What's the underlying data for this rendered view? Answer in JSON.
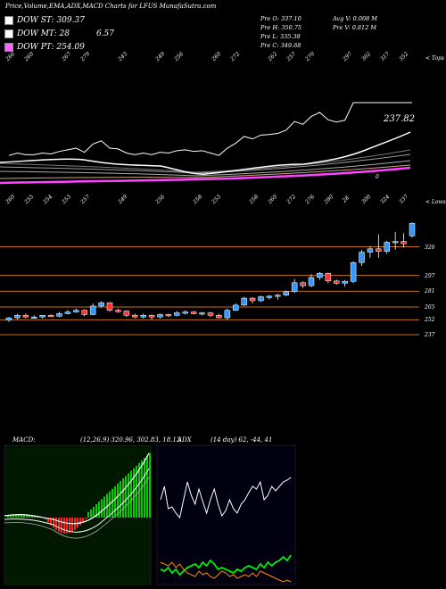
{
  "title": "Price,Volume,EMA,ADX,MACD Charts for LFUS MunafaSutra.com",
  "legend": [
    {
      "label": "DOW ST: 309.37",
      "color": "#ffffff"
    },
    {
      "label": "DOW MT: 28",
      "extra": "6.57",
      "color": "#ffffff"
    },
    {
      "label": "DOW PT: 254.09",
      "color": "#ff66ff"
    }
  ],
  "price_info": {
    "col1": [
      "Pre   O: 337.10",
      "Pre   H: 350.75",
      "Pre   L: 335.38",
      "Pre   C: 349.68"
    ],
    "col2": [
      "Avg V: 0.008   M",
      "Pre   V: 0.812   M"
    ]
  },
  "top_label": "< Tops",
  "low_label": "< Lows",
  "price_annot": "237.82",
  "zero_label": "0",
  "tops_numbers": [
    "266",
    "260",
    "",
    "267",
    "279",
    "",
    "243",
    "",
    "249",
    "256",
    "",
    "260",
    "272",
    "",
    "262",
    "257",
    "270",
    "",
    "297",
    "302",
    "317",
    "352"
  ],
  "lows_numbers": [
    "260",
    "255",
    "254",
    "253",
    "257",
    "",
    "249",
    "",
    "256",
    "",
    "258",
    "253",
    "",
    "258",
    "260",
    "272",
    "276",
    "280",
    "28",
    "300",
    "324",
    "337"
  ],
  "macd": {
    "label": "MACD:",
    "values": "(12,26,9) 320.96, 302.83, 18.13",
    "adx_label": "ADX",
    "adx_values": "(14 day) 62, -44, 41"
  },
  "colors": {
    "price_up": "#3399ff",
    "price_down": "#ff3333",
    "ema_pink": "#ff44ff",
    "level_line": "#c8701a",
    "macd_green": "#00cc00",
    "macd_red": "#ff2222",
    "adx_green": "#00ee00",
    "adx_orange": "#ff8800"
  },
  "chart_data": {
    "type": "candlestick",
    "price_levels": [
      326,
      297,
      281,
      265,
      252,
      237
    ],
    "candles": [
      {
        "o": 251.6,
        "h": 254.9,
        "l": 250.0,
        "c": 254.1
      },
      {
        "o": 254.1,
        "h": 258.0,
        "l": 252.3,
        "c": 256.6
      },
      {
        "o": 256.6,
        "h": 258.3,
        "l": 253.7,
        "c": 254.9
      },
      {
        "o": 254.9,
        "h": 256.6,
        "l": 253.4,
        "c": 254.9
      },
      {
        "o": 254.9,
        "h": 256.6,
        "l": 253.4,
        "c": 256.6
      },
      {
        "o": 256.6,
        "h": 257.4,
        "l": 254.9,
        "c": 255.7
      },
      {
        "o": 255.7,
        "h": 260.0,
        "l": 254.9,
        "c": 258.3
      },
      {
        "o": 258.3,
        "h": 262.0,
        "l": 257.4,
        "c": 260.0
      },
      {
        "o": 260.0,
        "h": 263.4,
        "l": 259.1,
        "c": 261.7
      },
      {
        "o": 261.7,
        "h": 262.6,
        "l": 255.7,
        "c": 257.4
      },
      {
        "o": 257.4,
        "h": 268.6,
        "l": 256.6,
        "c": 266.0
      },
      {
        "o": 266.0,
        "h": 270.9,
        "l": 264.3,
        "c": 269.4
      },
      {
        "o": 269.4,
        "h": 270.0,
        "l": 260.0,
        "c": 261.7
      },
      {
        "o": 261.7,
        "h": 263.4,
        "l": 259.1,
        "c": 260.9
      },
      {
        "o": 260.9,
        "h": 261.7,
        "l": 254.9,
        "c": 256.6
      },
      {
        "o": 256.6,
        "h": 258.3,
        "l": 253.7,
        "c": 254.9
      },
      {
        "o": 254.9,
        "h": 258.3,
        "l": 253.4,
        "c": 256.6
      },
      {
        "o": 256.6,
        "h": 257.4,
        "l": 252.3,
        "c": 254.9
      },
      {
        "o": 254.9,
        "h": 258.3,
        "l": 253.4,
        "c": 257.4
      },
      {
        "o": 257.4,
        "h": 258.3,
        "l": 254.9,
        "c": 256.6
      },
      {
        "o": 256.6,
        "h": 260.9,
        "l": 255.7,
        "c": 259.1
      },
      {
        "o": 259.1,
        "h": 261.7,
        "l": 257.4,
        "c": 260.0
      },
      {
        "o": 260.0,
        "h": 260.9,
        "l": 257.4,
        "c": 258.3
      },
      {
        "o": 258.3,
        "h": 260.0,
        "l": 256.6,
        "c": 259.1
      },
      {
        "o": 259.1,
        "h": 260.0,
        "l": 254.9,
        "c": 256.6
      },
      {
        "o": 256.6,
        "h": 258.3,
        "l": 253.4,
        "c": 254.1
      },
      {
        "o": 254.1,
        "h": 263.4,
        "l": 252.3,
        "c": 261.7
      },
      {
        "o": 261.7,
        "h": 268.6,
        "l": 260.9,
        "c": 266.9
      },
      {
        "o": 266.9,
        "h": 275.4,
        "l": 266.0,
        "c": 274.0
      },
      {
        "o": 274.0,
        "h": 274.9,
        "l": 268.6,
        "c": 271.4
      },
      {
        "o": 271.4,
        "h": 276.6,
        "l": 270.0,
        "c": 275.4
      },
      {
        "o": 275.4,
        "h": 277.1,
        "l": 272.6,
        "c": 276.0
      },
      {
        "o": 276.0,
        "h": 278.3,
        "l": 272.6,
        "c": 277.1
      },
      {
        "o": 277.1,
        "h": 281.7,
        "l": 276.0,
        "c": 280.6
      },
      {
        "o": 280.6,
        "h": 293.4,
        "l": 279.1,
        "c": 289.7
      },
      {
        "o": 289.7,
        "h": 290.9,
        "l": 284.3,
        "c": 286.6
      },
      {
        "o": 286.6,
        "h": 298.3,
        "l": 285.1,
        "c": 294.9
      },
      {
        "o": 294.9,
        "h": 300.3,
        "l": 292.6,
        "c": 299.1
      },
      {
        "o": 299.1,
        "h": 299.7,
        "l": 289.1,
        "c": 291.4
      },
      {
        "o": 291.4,
        "h": 292.6,
        "l": 287.4,
        "c": 289.1
      },
      {
        "o": 289.1,
        "h": 292.3,
        "l": 285.7,
        "c": 290.9
      },
      {
        "o": 290.9,
        "h": 311.4,
        "l": 289.1,
        "c": 310.0
      },
      {
        "o": 310.0,
        "h": 322.9,
        "l": 306.6,
        "c": 320.6
      },
      {
        "o": 320.6,
        "h": 326.6,
        "l": 314.9,
        "c": 324.0
      },
      {
        "o": 324.0,
        "h": 338.6,
        "l": 314.9,
        "c": 321.4
      },
      {
        "o": 321.4,
        "h": 332.0,
        "l": 318.9,
        "c": 330.6
      },
      {
        "o": 330.6,
        "h": 341.1,
        "l": 323.1,
        "c": 331.4
      },
      {
        "o": 331.4,
        "h": 339.7,
        "l": 325.1,
        "c": 329.1
      },
      {
        "o": 337.1,
        "h": 350.75,
        "l": 335.38,
        "c": 349.68
      }
    ]
  }
}
